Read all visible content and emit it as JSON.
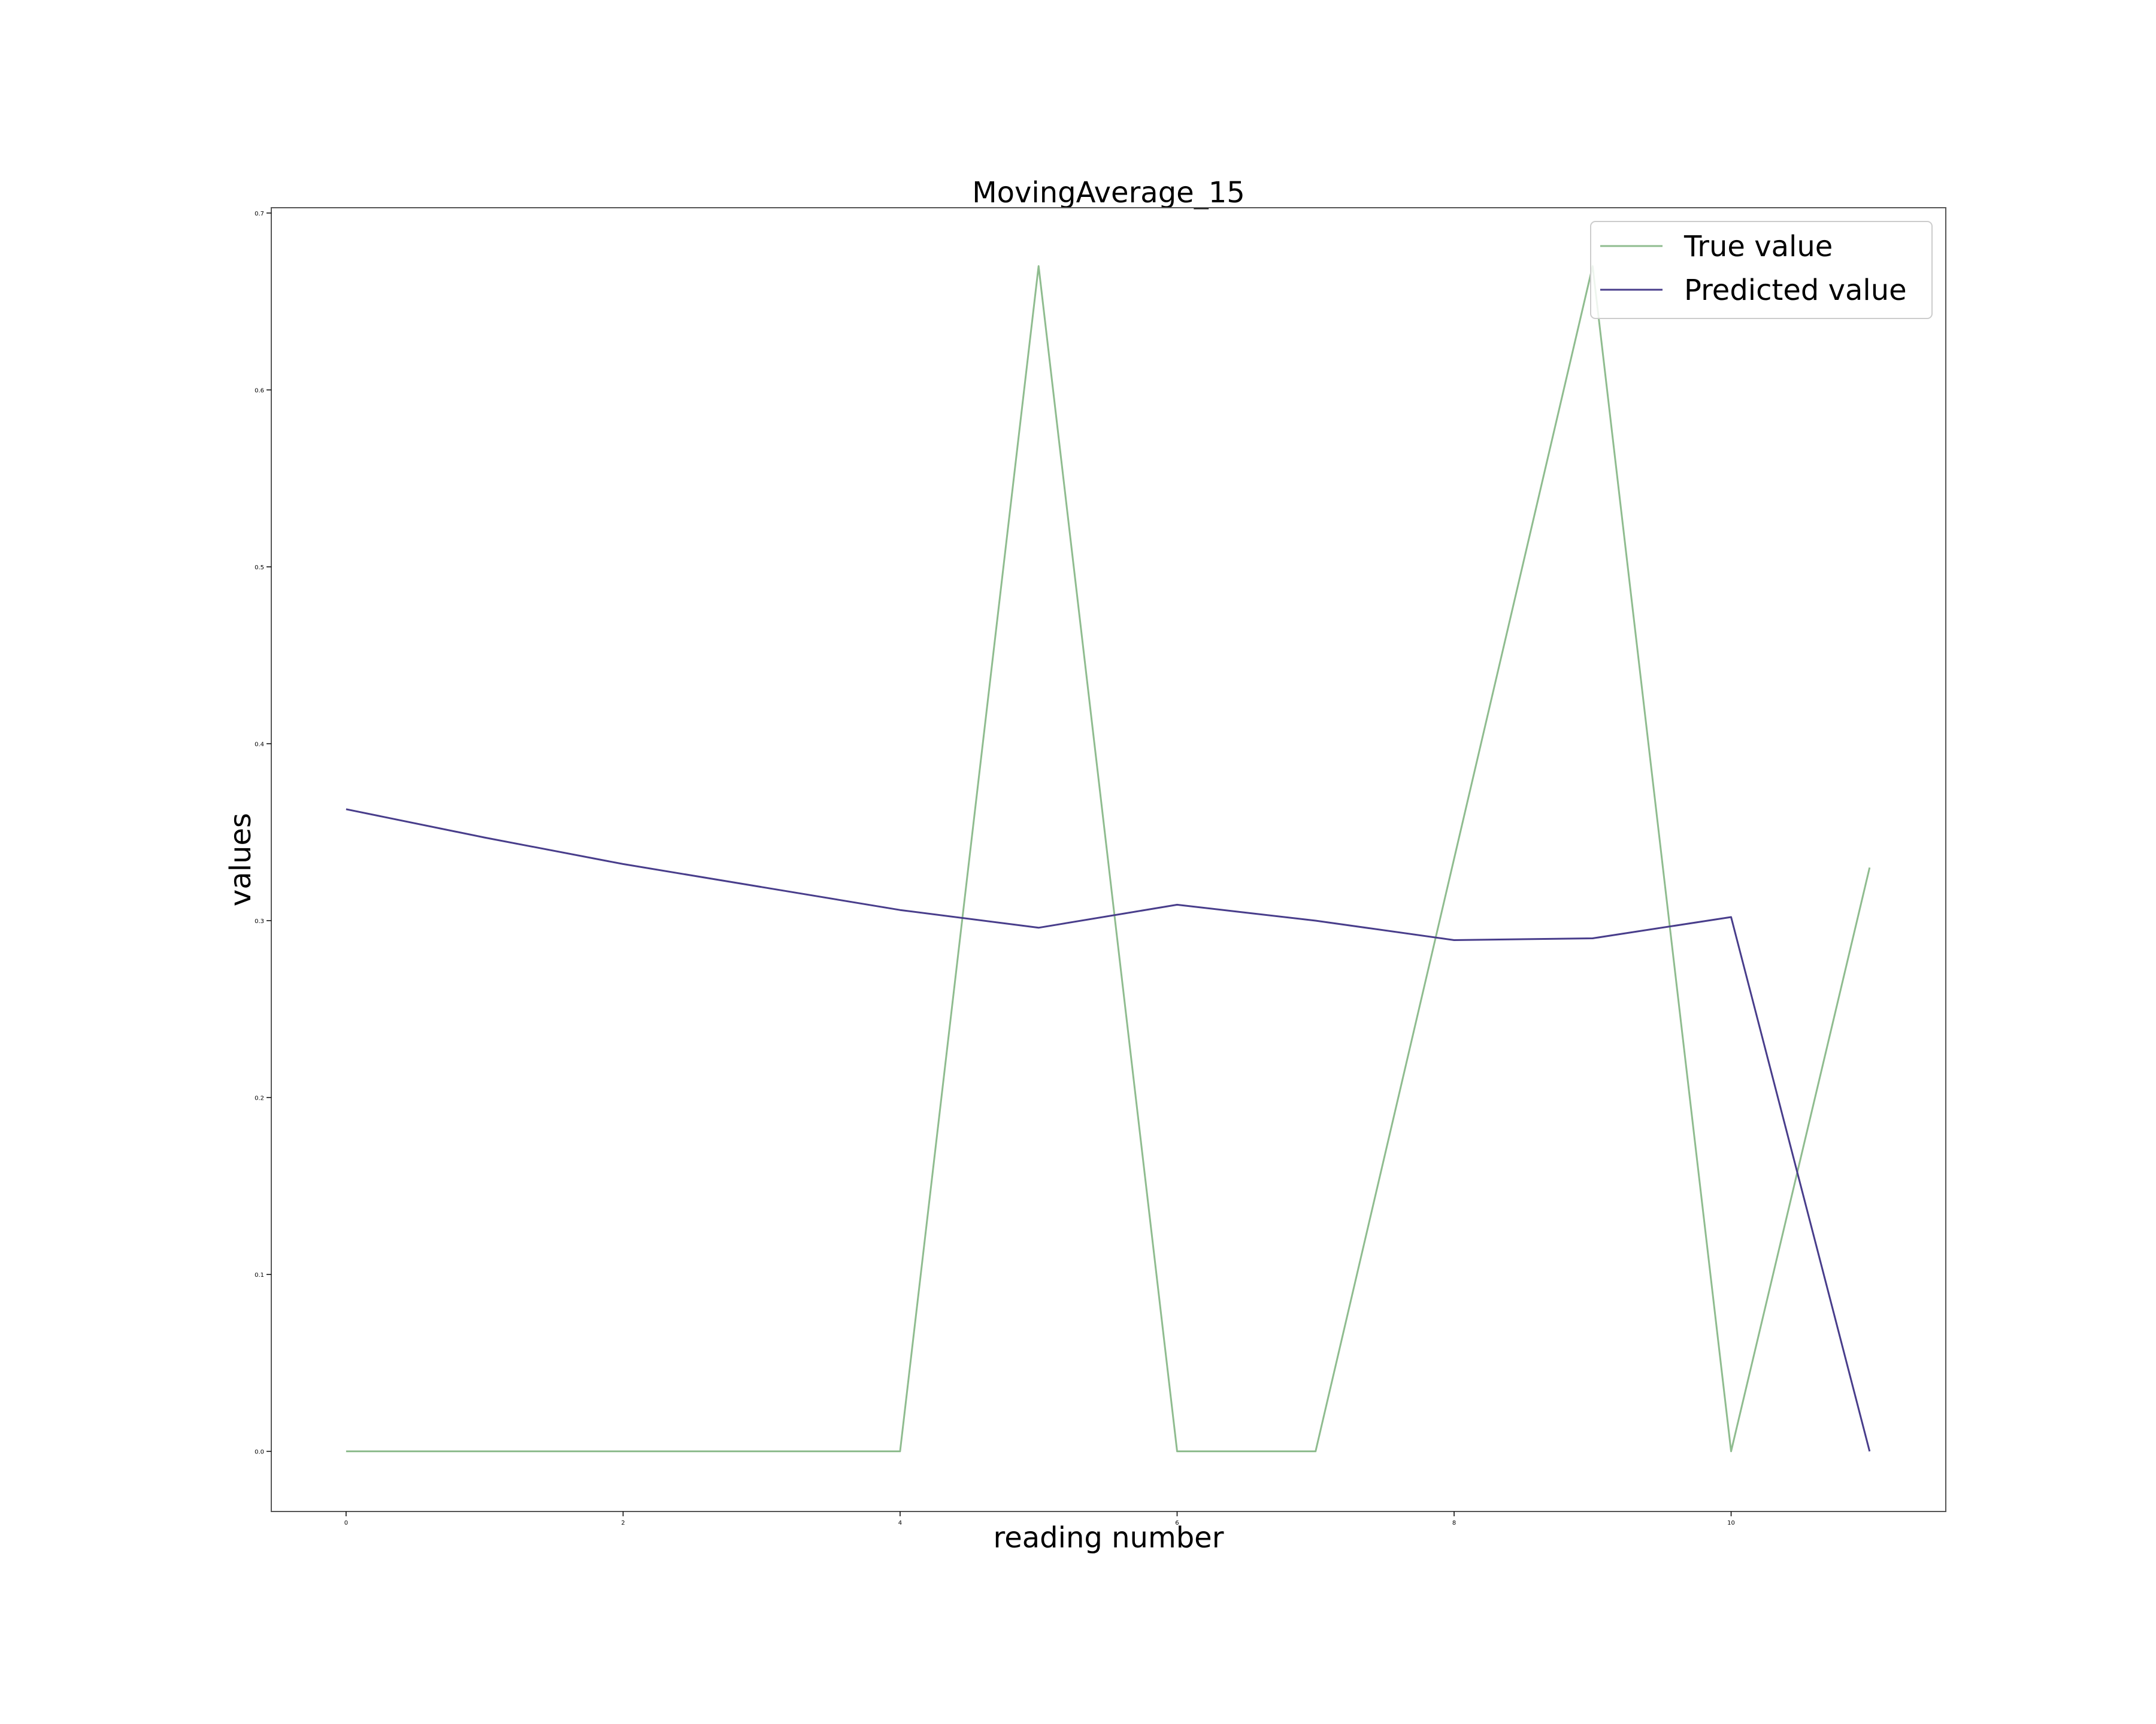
{
  "chart_data": {
    "type": "line",
    "title": "MovingAverage_15",
    "xlabel": "reading number",
    "ylabel": "values",
    "xlim": [
      -0.54,
      11.55
    ],
    "ylim": [
      -0.034,
      0.703
    ],
    "xticks": [
      0,
      2,
      4,
      6,
      8,
      10
    ],
    "yticks": [
      0.0,
      0.1,
      0.2,
      0.3,
      0.4,
      0.5,
      0.6,
      0.7
    ],
    "grid": false,
    "legend_position": "top-right",
    "x": [
      0,
      1,
      2,
      3,
      4,
      5,
      6,
      7,
      8,
      9,
      10,
      11
    ],
    "series": [
      {
        "name": "True value",
        "color": "#8fbc8f",
        "values": [
          0.0,
          0.0,
          0.0,
          0.0,
          0.0,
          0.67,
          0.0,
          0.0,
          0.335,
          0.67,
          0.0,
          0.33
        ]
      },
      {
        "name": "Predicted value",
        "color": "#483d8b",
        "values": [
          0.363,
          0.347,
          0.332,
          0.319,
          0.306,
          0.296,
          0.309,
          0.3,
          0.289,
          0.29,
          0.302,
          0.0
        ]
      }
    ]
  }
}
